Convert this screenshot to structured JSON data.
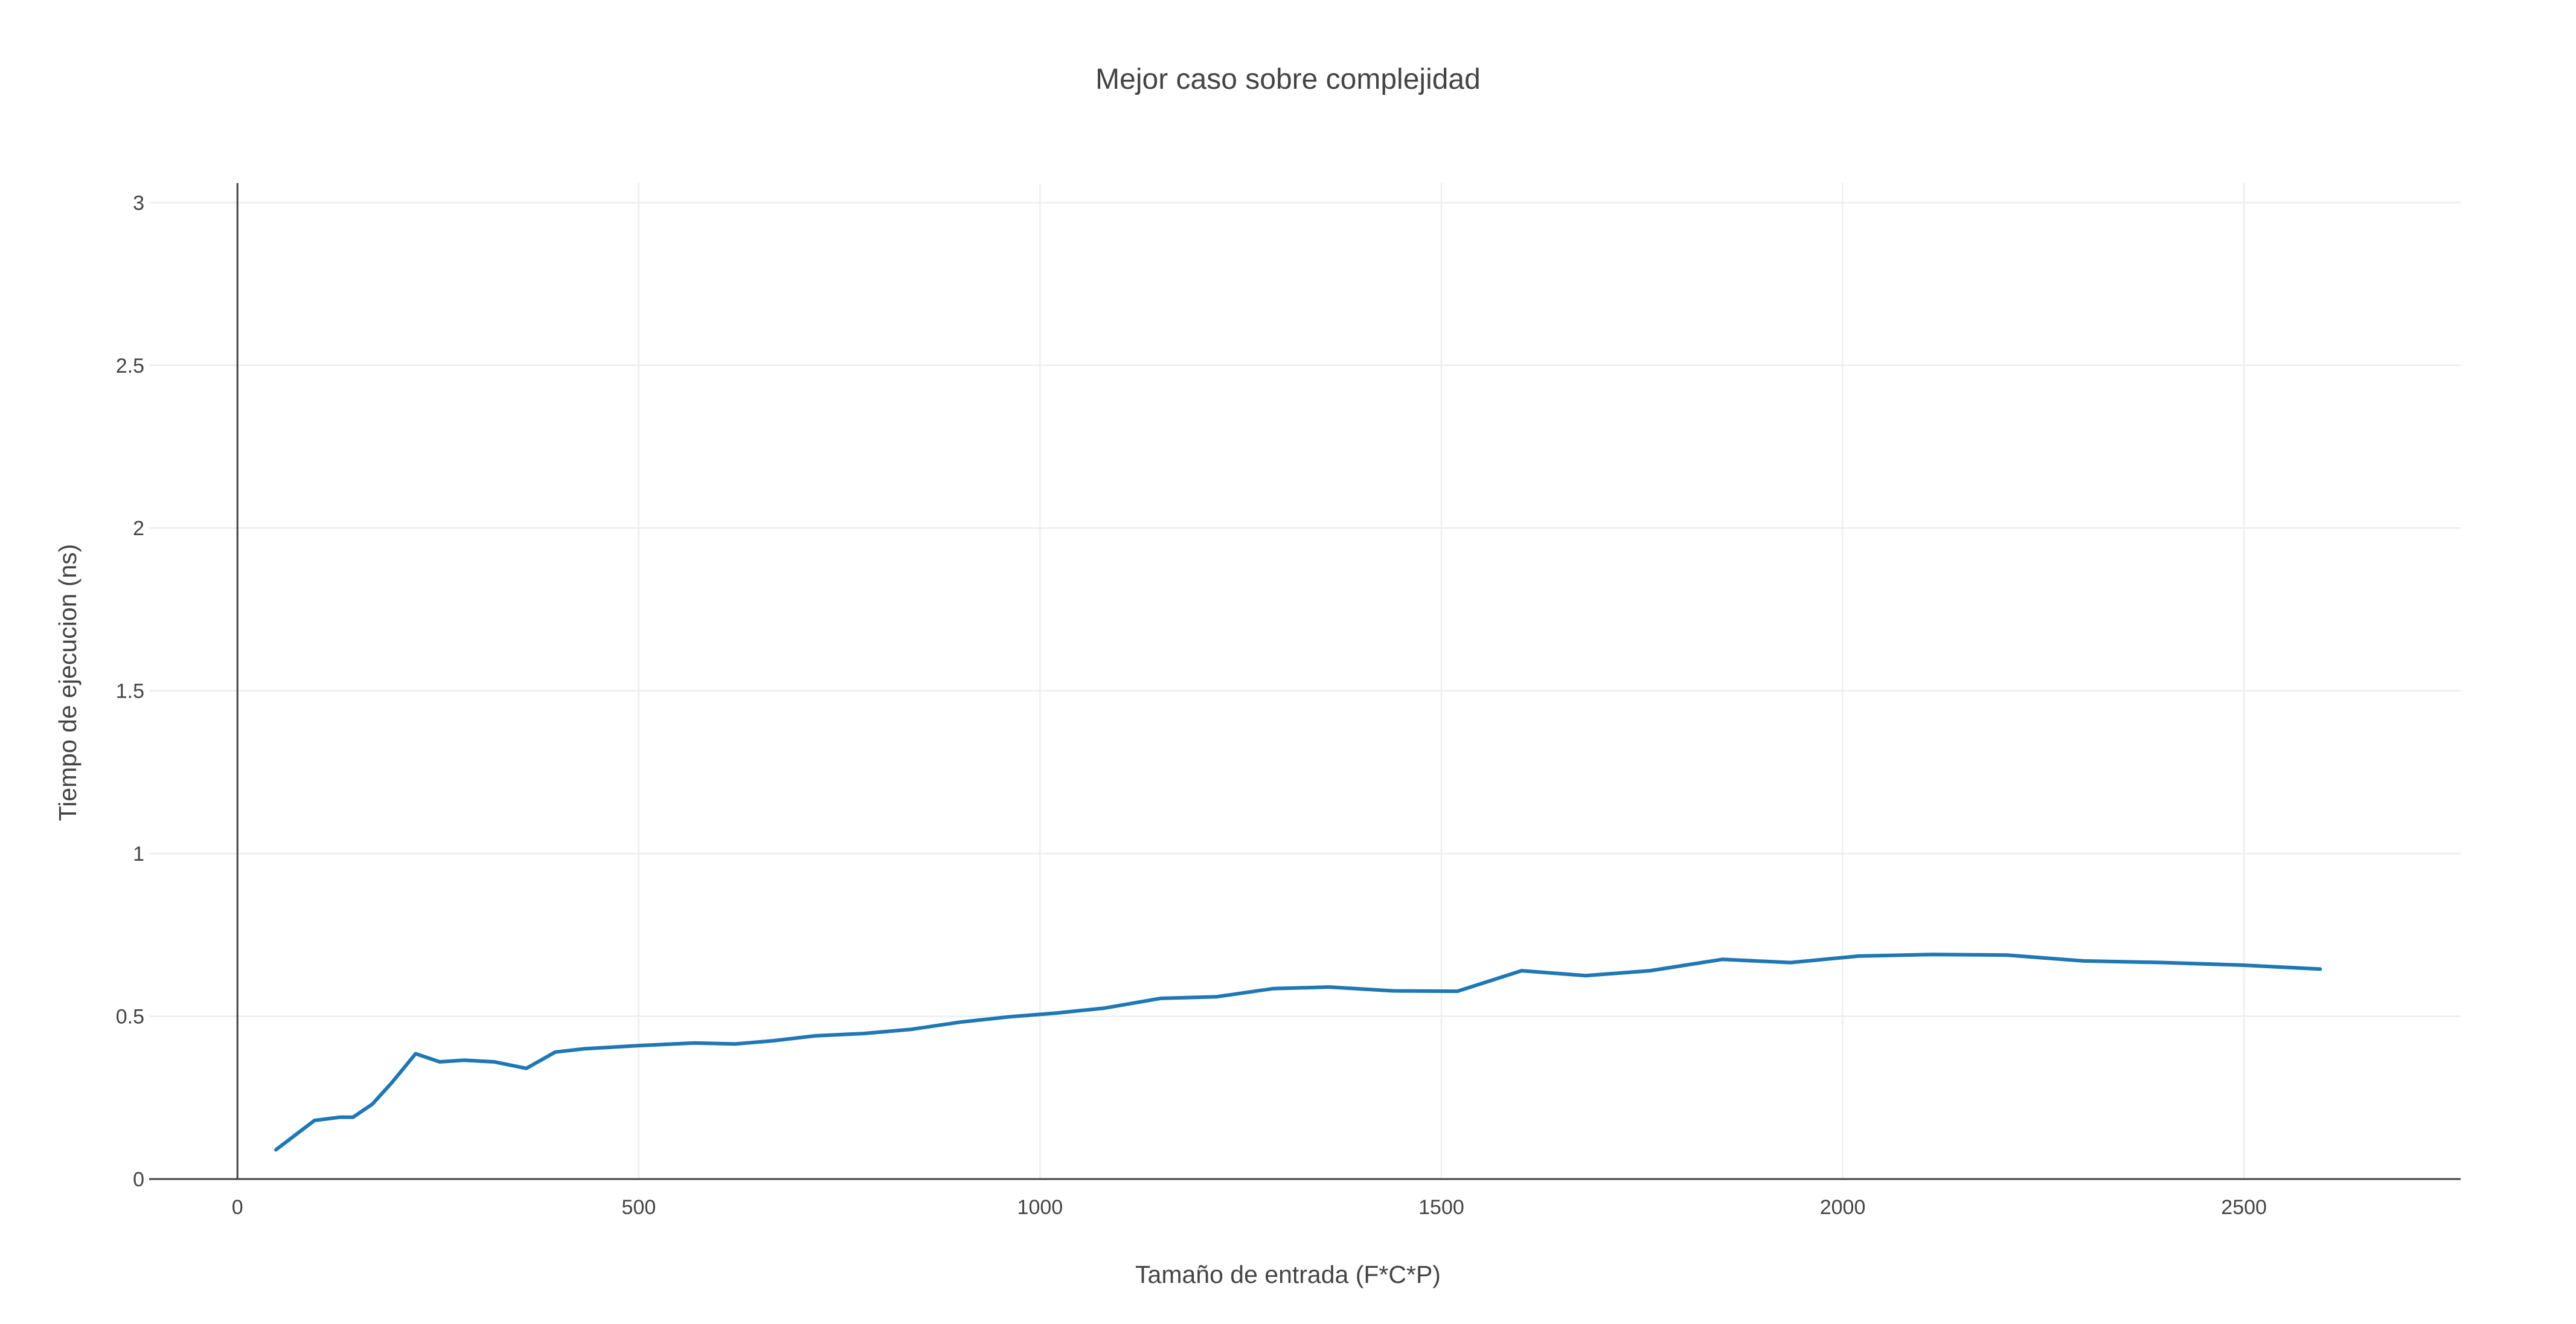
{
  "chart_data": {
    "type": "line",
    "title": "Mejor caso sobre complejidad",
    "xlabel": "Tamaño de entrada (F*C*P)",
    "ylabel": "Tiempo de ejecucion (ns)",
    "xlim": [
      -110,
      2770
    ],
    "ylim": [
      0,
      3.06
    ],
    "xticks": [
      0,
      500,
      1000,
      1500,
      2000,
      2500
    ],
    "xtick_labels": [
      "0",
      "500",
      "1000",
      "1500",
      "2000",
      "2500"
    ],
    "yticks": [
      0,
      0.5,
      1,
      1.5,
      2,
      2.5,
      3
    ],
    "ytick_labels": [
      "0",
      "0.5",
      "1",
      "1.5",
      "2",
      "2.5",
      "3"
    ],
    "grid": true,
    "legend": "none",
    "line_color": "#1f77b4",
    "series": [
      {
        "x": [
          48,
          64,
          80,
          96,
          112,
          128,
          144,
          168,
          192,
          222,
          252,
          282,
          320,
          360,
          396,
          432,
          500,
          570,
          620,
          668,
          720,
          780,
          840,
          900,
          960,
          1020,
          1080,
          1150,
          1220,
          1290,
          1360,
          1440,
          1520,
          1600,
          1680,
          1760,
          1850,
          1935,
          2020,
          2112,
          2205,
          2300,
          2400,
          2500,
          2595
        ],
        "y": [
          0.09,
          0.12,
          0.15,
          0.18,
          0.185,
          0.19,
          0.19,
          0.23,
          0.295,
          0.385,
          0.36,
          0.365,
          0.36,
          0.34,
          0.39,
          0.4,
          0.41,
          0.418,
          0.415,
          0.425,
          0.44,
          0.447,
          0.46,
          0.482,
          0.498,
          0.51,
          0.525,
          0.555,
          0.56,
          0.585,
          0.59,
          0.578,
          0.577,
          0.64,
          0.625,
          0.64,
          0.675,
          0.665,
          0.685,
          0.69,
          0.688,
          0.67,
          0.665,
          0.657,
          0.645
        ]
      }
    ]
  }
}
